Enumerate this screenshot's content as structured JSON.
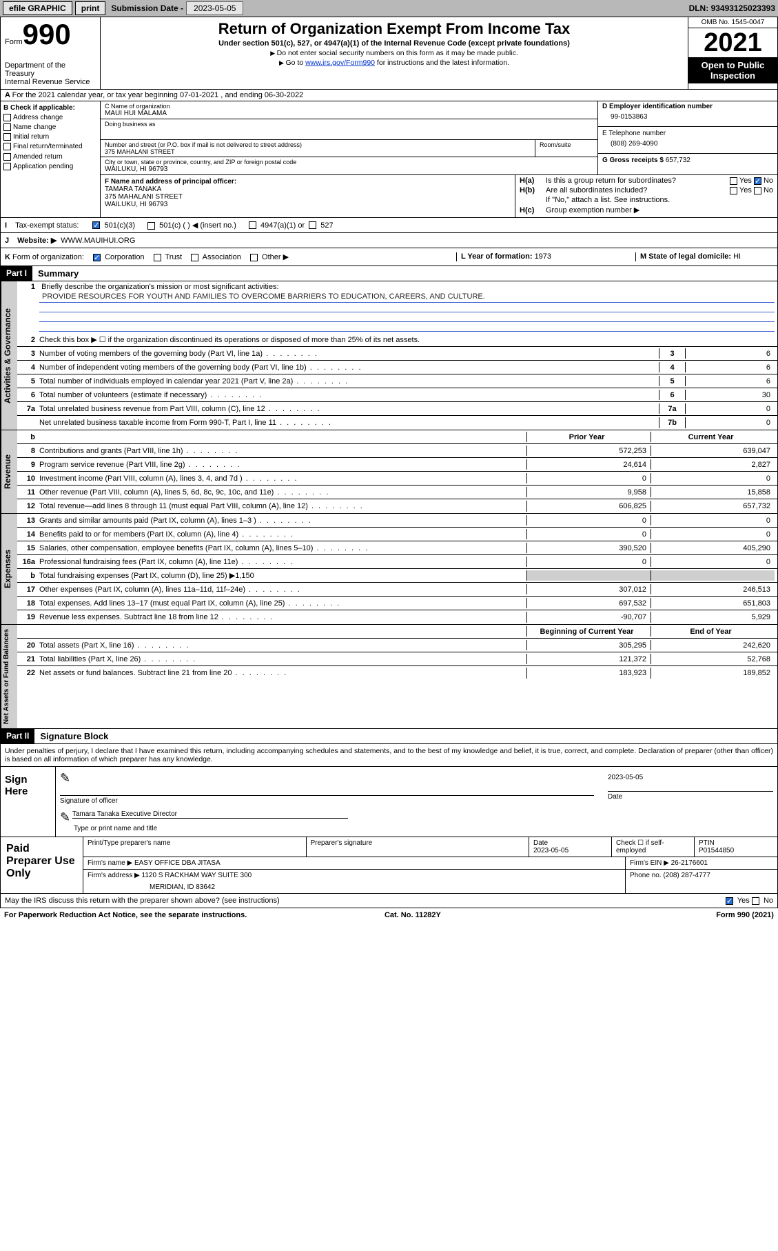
{
  "topbar": {
    "efile": "efile GRAPHIC",
    "print": "print",
    "sub_label": "Submission Date - ",
    "sub_date": "2023-05-05",
    "dln_label": "DLN: ",
    "dln": "93493125023393"
  },
  "header": {
    "form_word": "Form",
    "form_num": "990",
    "title": "Return of Organization Exempt From Income Tax",
    "subtitle": "Under section 501(c), 527, or 4947(a)(1) of the Internal Revenue Code (except private foundations)",
    "note1": "Do not enter social security numbers on this form as it may be made public.",
    "note2_pre": "Go to ",
    "note2_link": "www.irs.gov/Form990",
    "note2_post": " for instructions and the latest information.",
    "dept1": "Department of the Treasury",
    "dept2": "Internal Revenue Service",
    "omb": "OMB No. 1545-0047",
    "year": "2021",
    "open": "Open to Public Inspection"
  },
  "row_a": "For the 2021 calendar year, or tax year beginning 07-01-2021   , and ending 06-30-2022",
  "col_b": {
    "hdr": "B Check if applicable:",
    "items": [
      "Address change",
      "Name change",
      "Initial return",
      "Final return/terminated",
      "Amended return",
      "Application pending"
    ]
  },
  "col_c": {
    "name_lbl": "C Name of organization",
    "name": "MAUI HUI MALAMA",
    "dba_lbl": "Doing business as",
    "dba": "",
    "addr_lbl": "Number and street (or P.O. box if mail is not delivered to street address)",
    "addr": "375 MAHALANI STREET",
    "suite_lbl": "Room/suite",
    "city_lbl": "City or town, state or province, country, and ZIP or foreign postal code",
    "city": "WAILUKU, HI  96793"
  },
  "col_d": {
    "ein_lbl": "D Employer identification number",
    "ein": "99-0153863",
    "tel_lbl": "E Telephone number",
    "tel": "(808) 269-4090",
    "gross_lbl": "G Gross receipts $ ",
    "gross": "657,732"
  },
  "col_f": {
    "lbl": "F  Name and address of principal officer:",
    "name": "TAMARA TANAKA",
    "addr1": "375 MAHALANI STREET",
    "addr2": "WAILUKU, HI  96793"
  },
  "col_h": {
    "ha_k": "H(a)",
    "ha_t": "Is this a group return for subordinates?",
    "ha_yes": "Yes",
    "ha_no": "No",
    "hb_k": "H(b)",
    "hb_t": "Are all subordinates included?",
    "hb_yes": "Yes",
    "hb_no": "No",
    "hb_note": "If \"No,\" attach a list. See instructions.",
    "hc_k": "H(c)",
    "hc_t": "Group exemption number ▶"
  },
  "row_i": {
    "key": "I",
    "lbl": "Tax-exempt status:",
    "o1": "501(c)(3)",
    "o2": "501(c) (  ) ◀ (insert no.)",
    "o3": "4947(a)(1) or",
    "o4": "527"
  },
  "row_j": {
    "key": "J",
    "lbl": "Website: ▶",
    "val": "WWW.MAUIHUI.ORG"
  },
  "row_k": {
    "key": "K",
    "lbl": "Form of organization:",
    "o1": "Corporation",
    "o2": "Trust",
    "o3": "Association",
    "o4": "Other ▶"
  },
  "row_l": {
    "lbl": "L Year of formation: ",
    "val": "1973"
  },
  "row_m": {
    "lbl": "M State of legal domicile: ",
    "val": "HI"
  },
  "part1": {
    "hdr": "Part I",
    "title": "Summary"
  },
  "mission": {
    "num": "1",
    "lbl": "Briefly describe the organization's mission or most significant activities:",
    "text": "PROVIDE RESOURCES FOR YOUTH AND FAMILIES TO OVERCOME BARRIERS TO EDUCATION, CAREERS, AND CULTURE."
  },
  "gov_rows": [
    {
      "n": "2",
      "t": "Check this box ▶ ☐  if the organization discontinued its operations or disposed of more than 25% of its net assets."
    },
    {
      "n": "3",
      "t": "Number of voting members of the governing body (Part VI, line 1a)",
      "k": "3",
      "v": "6"
    },
    {
      "n": "4",
      "t": "Number of independent voting members of the governing body (Part VI, line 1b)",
      "k": "4",
      "v": "6"
    },
    {
      "n": "5",
      "t": "Total number of individuals employed in calendar year 2021 (Part V, line 2a)",
      "k": "5",
      "v": "6"
    },
    {
      "n": "6",
      "t": "Total number of volunteers (estimate if necessary)",
      "k": "6",
      "v": "30"
    },
    {
      "n": "7a",
      "t": "Total unrelated business revenue from Part VIII, column (C), line 12",
      "k": "7a",
      "v": "0"
    },
    {
      "n": "",
      "t": "Net unrelated business taxable income from Form 990-T, Part I, line 11",
      "k": "7b",
      "v": "0"
    }
  ],
  "yr_hdr": {
    "b": "b",
    "prior": "Prior Year",
    "cur": "Current Year"
  },
  "rev_rows": [
    {
      "n": "8",
      "t": "Contributions and grants (Part VIII, line 1h)",
      "p": "572,253",
      "c": "639,047"
    },
    {
      "n": "9",
      "t": "Program service revenue (Part VIII, line 2g)",
      "p": "24,614",
      "c": "2,827"
    },
    {
      "n": "10",
      "t": "Investment income (Part VIII, column (A), lines 3, 4, and 7d )",
      "p": "0",
      "c": "0"
    },
    {
      "n": "11",
      "t": "Other revenue (Part VIII, column (A), lines 5, 6d, 8c, 9c, 10c, and 11e)",
      "p": "9,958",
      "c": "15,858"
    },
    {
      "n": "12",
      "t": "Total revenue—add lines 8 through 11 (must equal Part VIII, column (A), line 12)",
      "p": "606,825",
      "c": "657,732"
    }
  ],
  "exp_rows": [
    {
      "n": "13",
      "t": "Grants and similar amounts paid (Part IX, column (A), lines 1–3 )",
      "p": "0",
      "c": "0"
    },
    {
      "n": "14",
      "t": "Benefits paid to or for members (Part IX, column (A), line 4)",
      "p": "0",
      "c": "0"
    },
    {
      "n": "15",
      "t": "Salaries, other compensation, employee benefits (Part IX, column (A), lines 5–10)",
      "p": "390,520",
      "c": "405,290"
    },
    {
      "n": "16a",
      "t": "Professional fundraising fees (Part IX, column (A), line 11e)",
      "p": "0",
      "c": "0"
    },
    {
      "n": "b",
      "t": "Total fundraising expenses (Part IX, column (D), line 25) ▶1,150",
      "grey": true
    },
    {
      "n": "17",
      "t": "Other expenses (Part IX, column (A), lines 11a–11d, 11f–24e)",
      "p": "307,012",
      "c": "246,513"
    },
    {
      "n": "18",
      "t": "Total expenses. Add lines 13–17 (must equal Part IX, column (A), line 25)",
      "p": "697,532",
      "c": "651,803"
    },
    {
      "n": "19",
      "t": "Revenue less expenses. Subtract line 18 from line 12",
      "p": "-90,707",
      "c": "5,929"
    }
  ],
  "na_hdr": {
    "b": "Beginning of Current Year",
    "e": "End of Year"
  },
  "na_rows": [
    {
      "n": "20",
      "t": "Total assets (Part X, line 16)",
      "p": "305,295",
      "c": "242,620"
    },
    {
      "n": "21",
      "t": "Total liabilities (Part X, line 26)",
      "p": "121,372",
      "c": "52,768"
    },
    {
      "n": "22",
      "t": "Net assets or fund balances. Subtract line 21 from line 20",
      "p": "183,923",
      "c": "189,852"
    }
  ],
  "vert": {
    "gov": "Activities & Governance",
    "rev": "Revenue",
    "exp": "Expenses",
    "na": "Net Assets or Fund Balances"
  },
  "part2": {
    "hdr": "Part II",
    "title": "Signature Block"
  },
  "sig": {
    "decl": "Under penalties of perjury, I declare that I have examined this return, including accompanying schedules and statements, and to the best of my knowledge and belief, it is true, correct, and complete. Declaration of preparer (other than officer) is based on all information of which preparer has any knowledge.",
    "sign_here": "Sign Here",
    "sig_officer": "Signature of officer",
    "date_lbl": "Date",
    "date": "2023-05-05",
    "name": "Tamara Tanaka  Executive Director",
    "name_lbl": "Type or print name and title"
  },
  "prep": {
    "title": "Paid Preparer Use Only",
    "h1": "Print/Type preparer's name",
    "h2": "Preparer's signature",
    "h3": "Date",
    "h3v": "2023-05-05",
    "h4": "Check ☐ if self-employed",
    "h5": "PTIN",
    "h5v": "P01544850",
    "firm_lbl": "Firm's name    ▶ ",
    "firm": "EASY OFFICE DBA JITASA",
    "ein_lbl": "Firm's EIN ▶ ",
    "ein": "26-2176601",
    "addr_lbl": "Firm's address ▶ ",
    "addr1": "1120 S RACKHAM WAY SUITE 300",
    "addr2": "MERIDIAN, ID  83642",
    "ph_lbl": "Phone no. ",
    "ph": "(208) 287-4777"
  },
  "discuss": {
    "t": "May the IRS discuss this return with the preparer shown above? (see instructions)",
    "yes": "Yes",
    "no": "No"
  },
  "bottom": {
    "l": "For Paperwork Reduction Act Notice, see the separate instructions.",
    "m": "Cat. No. 11282Y",
    "r": "Form 990 (2021)"
  },
  "colors": {
    "blue": "#2a6fd6",
    "link": "#0033cc",
    "grey": "#cfcfcf",
    "line": "#3a5fcd"
  }
}
